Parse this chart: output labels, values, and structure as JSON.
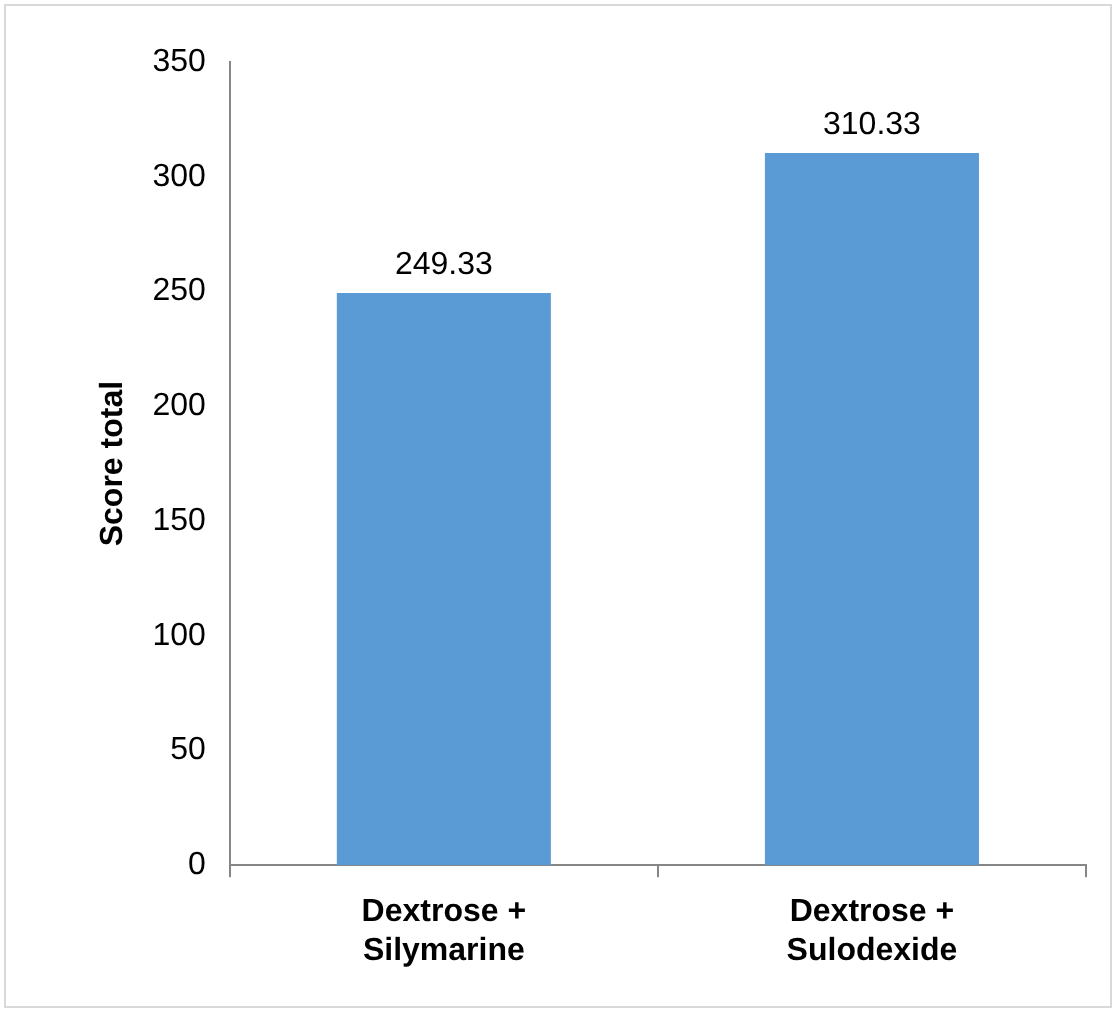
{
  "chart_data": {
    "type": "bar",
    "ylabel": "Score total",
    "categories": [
      "Dextrose + Silymarine",
      "Dextrose + Sulodexide"
    ],
    "values": [
      249.33,
      310.33
    ],
    "color": "#5b9bd5",
    "ylim": [
      0,
      350
    ],
    "yticks": [
      0,
      50,
      100,
      150,
      200,
      250,
      300,
      350
    ],
    "grid": false,
    "legend": false,
    "data_labels": true
  }
}
